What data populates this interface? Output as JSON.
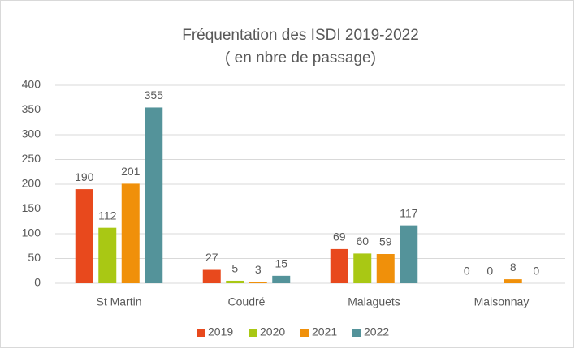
{
  "chart_data": {
    "type": "bar",
    "title": "Fréquentation des ISDI 2019-2022",
    "subtitle": "( en nbre de passage)",
    "categories": [
      "St Martin",
      "Coudré",
      "Malaguets",
      "Maisonnay"
    ],
    "series": [
      {
        "name": "2019",
        "color": "#e8491d",
        "values": [
          190,
          27,
          69,
          0
        ]
      },
      {
        "name": "2020",
        "color": "#a9c814",
        "values": [
          112,
          5,
          60,
          0
        ]
      },
      {
        "name": "2021",
        "color": "#f0900a",
        "values": [
          201,
          3,
          59,
          8
        ]
      },
      {
        "name": "2022",
        "color": "#54939a",
        "values": [
          355,
          15,
          117,
          0
        ]
      }
    ],
    "ylim": [
      0,
      400
    ],
    "yticks": [
      0,
      50,
      100,
      150,
      200,
      250,
      300,
      350,
      400
    ],
    "grid": true,
    "legend": "bottom"
  }
}
